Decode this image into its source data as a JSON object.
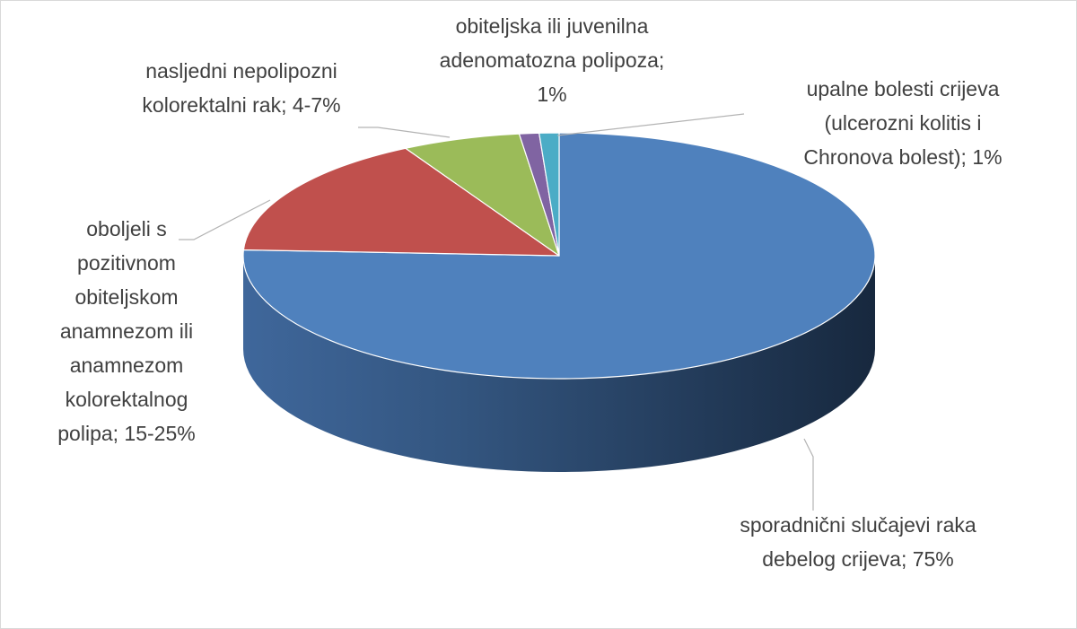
{
  "chart_data": {
    "type": "pie",
    "style": "3d",
    "title": "",
    "legend": "none",
    "slices": [
      {
        "label_lines": [
          "sporadnični slučajevi raka",
          "debelog crijeva; 75%"
        ],
        "value": 75,
        "color": "#4f81bd"
      },
      {
        "label_lines": [
          "oboljeli s",
          "pozitivnom",
          "obiteljskom",
          "anamnezom ili",
          "anamnezom",
          "kolorektalnog",
          "polipa; 15-25%"
        ],
        "value": 16,
        "color": "#c0504d"
      },
      {
        "label_lines": [
          "nasljedni nepolipozni",
          "kolorektalni rak; 4-7%"
        ],
        "value": 6,
        "color": "#9bbb59"
      },
      {
        "label_lines": [
          "obiteljska ili juvenilna",
          "adenomatozna polipoza;",
          "1%"
        ],
        "value": 1,
        "color": "#8064a2"
      },
      {
        "label_lines": [
          "upalne bolesti crijeva",
          "(ulcerozni kolitis i",
          "Chronova bolest); 1%"
        ],
        "value": 1,
        "color": "#4bacc6"
      }
    ]
  }
}
